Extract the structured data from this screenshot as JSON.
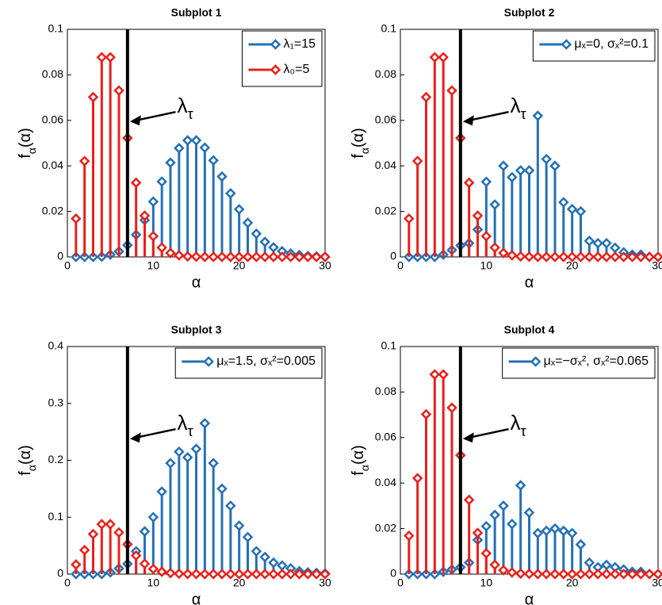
{
  "chart_data": [
    {
      "type": "stem",
      "title": "Subplot 1",
      "xlabel": "α",
      "ylabel": "fα(α)",
      "xlim": [
        0,
        30
      ],
      "xticks": [
        0,
        10,
        20,
        30
      ],
      "ylim": [
        0,
        0.1
      ],
      "yticks": [
        0,
        0.02,
        0.04,
        0.06,
        0.08,
        0.1
      ],
      "legend": "northeast",
      "threshold": 7,
      "annotation": "λτ",
      "x": [
        1,
        2,
        3,
        4,
        5,
        6,
        7,
        8,
        9,
        10,
        11,
        12,
        13,
        14,
        15,
        16,
        17,
        18,
        19,
        20,
        21,
        22,
        23,
        24,
        25,
        26,
        27,
        28,
        29,
        30
      ],
      "series": [
        {
          "name": "λ₁=15",
          "color": "#2470b4",
          "values": [
            0,
            0,
            0,
            0.0001,
            0.001,
            0.0024,
            0.0052,
            0.0097,
            0.0162,
            0.0243,
            0.0331,
            0.0414,
            0.0478,
            0.0512,
            0.0512,
            0.048,
            0.0424,
            0.0353,
            0.0279,
            0.0209,
            0.015,
            0.0102,
            0.0066,
            0.0042,
            0.0025,
            0.0015,
            0.0008,
            0.0004,
            0.0002,
            0.0001
          ]
        },
        {
          "name": "λ₀=5",
          "color": "#e8201a",
          "values": [
            0.0168,
            0.0421,
            0.0702,
            0.0877,
            0.0877,
            0.0731,
            0.0522,
            0.0326,
            0.0181,
            0.0091,
            0.0041,
            0.0017,
            0.0007,
            0.0002,
            0.0001,
            0,
            0,
            0,
            0,
            0,
            0,
            0,
            0,
            0,
            0,
            0,
            0,
            0,
            0,
            0
          ]
        }
      ]
    },
    {
      "type": "stem",
      "title": "Subplot 2",
      "xlabel": "α",
      "ylabel": "fα(α)",
      "xlim": [
        0,
        30
      ],
      "xticks": [
        0,
        10,
        20,
        30
      ],
      "ylim": [
        0,
        0.1
      ],
      "yticks": [
        0,
        0.02,
        0.04,
        0.06,
        0.08,
        0.1
      ],
      "legend": "northeast",
      "threshold": 7,
      "annotation": "λτ",
      "x": [
        1,
        2,
        3,
        4,
        5,
        6,
        7,
        8,
        9,
        10,
        11,
        12,
        13,
        14,
        15,
        16,
        17,
        18,
        19,
        20,
        21,
        22,
        23,
        24,
        25,
        26,
        27,
        28,
        29,
        30
      ],
      "series": [
        {
          "name": "μₓ=0, σₓ²=0.1",
          "color": "#2470b4",
          "values": [
            0,
            0,
            0,
            0,
            0.001,
            0.003,
            0.005,
            0.006,
            0.012,
            0.033,
            0.023,
            0.04,
            0.035,
            0.038,
            0.038,
            0.062,
            0.043,
            0.04,
            0.024,
            0.021,
            0.02,
            0.007,
            0.006,
            0.006,
            0.004,
            0.002,
            0.001,
            0.001,
            0,
            0
          ]
        },
        {
          "color": "#e8201a",
          "values": [
            0.0168,
            0.0421,
            0.0702,
            0.0877,
            0.0877,
            0.0731,
            0.0522,
            0.0326,
            0.0181,
            0.0091,
            0.0041,
            0.0017,
            0.0007,
            0.0002,
            0.0001,
            0,
            0,
            0,
            0,
            0,
            0,
            0,
            0,
            0,
            0,
            0,
            0,
            0,
            0,
            0
          ]
        }
      ]
    },
    {
      "type": "stem",
      "title": "Subplot 3",
      "xlabel": "α",
      "ylabel": "fα(α)",
      "xlim": [
        0,
        30
      ],
      "xticks": [
        0,
        10,
        20,
        30
      ],
      "ylim": [
        0,
        0.4
      ],
      "yticks": [
        0,
        0.1,
        0.2,
        0.3,
        0.4
      ],
      "legend": "northeast",
      "threshold": 7,
      "annotation": "λτ",
      "x": [
        1,
        2,
        3,
        4,
        5,
        6,
        7,
        8,
        9,
        10,
        11,
        12,
        13,
        14,
        15,
        16,
        17,
        18,
        19,
        20,
        21,
        22,
        23,
        24,
        25,
        26,
        27,
        28,
        29,
        30
      ],
      "series": [
        {
          "name": "μₓ=1.5, σₓ²=0.005",
          "color": "#2470b4",
          "values": [
            0,
            0,
            0,
            0,
            0.003,
            0.01,
            0.018,
            0.04,
            0.075,
            0.1,
            0.145,
            0.195,
            0.215,
            0.205,
            0.22,
            0.265,
            0.195,
            0.15,
            0.12,
            0.085,
            0.065,
            0.04,
            0.03,
            0.02,
            0.015,
            0.01,
            0.005,
            0.003,
            0.002,
            0.001
          ]
        },
        {
          "color": "#e8201a",
          "values": [
            0.0168,
            0.0421,
            0.0702,
            0.0877,
            0.0877,
            0.0731,
            0.0522,
            0.0326,
            0.0181,
            0.0091,
            0.0041,
            0.0017,
            0.0007,
            0.0002,
            0.0001,
            0,
            0,
            0,
            0,
            0,
            0,
            0,
            0,
            0,
            0,
            0,
            0,
            0,
            0,
            0
          ]
        }
      ]
    },
    {
      "type": "stem",
      "title": "Subplot 4",
      "xlabel": "α",
      "ylabel": "fα(α)",
      "xlim": [
        0,
        30
      ],
      "xticks": [
        0,
        10,
        20,
        30
      ],
      "ylim": [
        0,
        0.1
      ],
      "yticks": [
        0,
        0.02,
        0.04,
        0.06,
        0.08,
        0.1
      ],
      "legend": "northeast",
      "threshold": 7,
      "annotation": "λτ",
      "x": [
        1,
        2,
        3,
        4,
        5,
        6,
        7,
        8,
        9,
        10,
        11,
        12,
        13,
        14,
        15,
        16,
        17,
        18,
        19,
        20,
        21,
        22,
        23,
        24,
        25,
        26,
        27,
        28,
        29,
        30
      ],
      "series": [
        {
          "name": "μₓ=−σₓ², σₓ²=0.065",
          "color": "#2470b4",
          "values": [
            0,
            0,
            0,
            0,
            0.001,
            0.002,
            0.003,
            0.005,
            0.015,
            0.021,
            0.026,
            0.03,
            0.022,
            0.039,
            0.027,
            0.018,
            0.019,
            0.02,
            0.019,
            0.018,
            0.013,
            0.005,
            0.003,
            0.004,
            0.003,
            0.002,
            0.001,
            0.001,
            0,
            0
          ]
        },
        {
          "color": "#e8201a",
          "values": [
            0.0168,
            0.0421,
            0.0702,
            0.0877,
            0.0877,
            0.0731,
            0.0522,
            0.0326,
            0.0181,
            0.0091,
            0.0041,
            0.0017,
            0.0007,
            0.0002,
            0.0001,
            0,
            0,
            0,
            0,
            0,
            0,
            0,
            0,
            0,
            0,
            0,
            0,
            0,
            0,
            0
          ]
        }
      ]
    }
  ]
}
